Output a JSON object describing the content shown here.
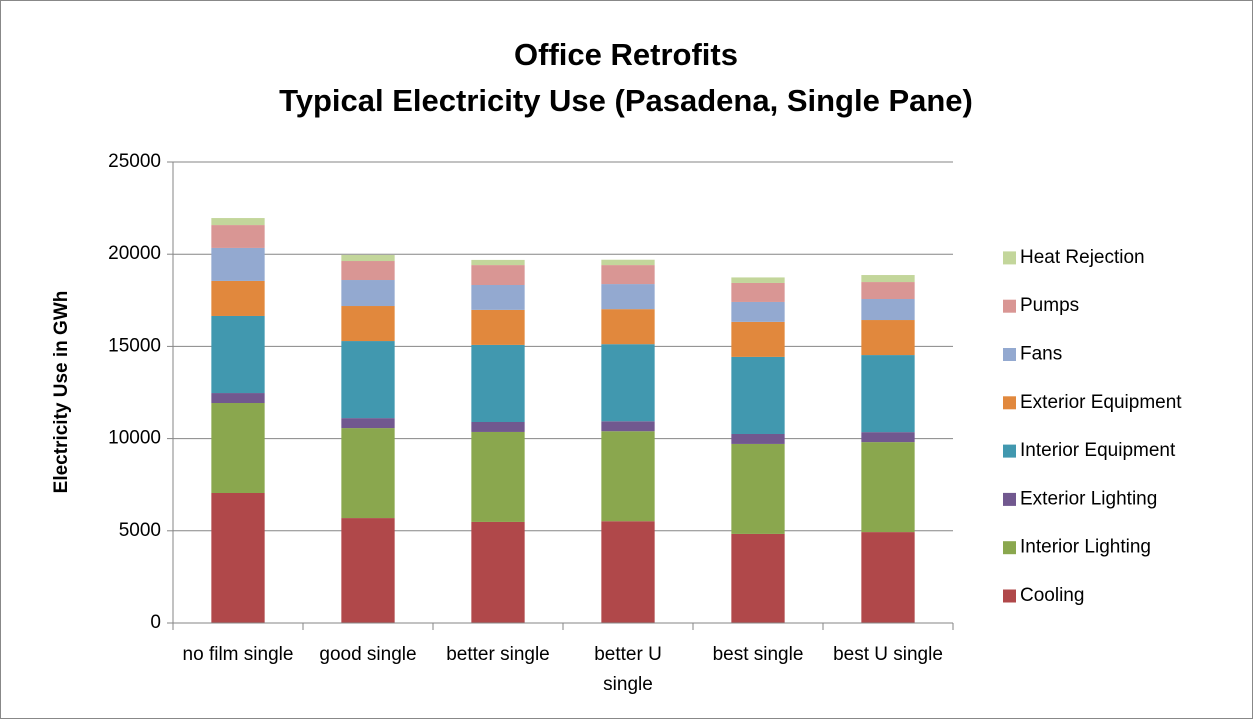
{
  "chart_data": {
    "type": "stacked_bar",
    "title": "Office Retrofits",
    "subtitle": "Typical Electricity Use (Pasadena, Single Pane)",
    "y_label": "Electricity Use in GWh",
    "categories": [
      "no film single",
      "good single",
      "better single",
      "better U single",
      "best single",
      "best U single"
    ],
    "series": [
      {
        "name": "Cooling",
        "color": "#b0484a",
        "values": [
          7050,
          5690,
          5480,
          5520,
          4830,
          4930
        ]
      },
      {
        "name": "Interior Lighting",
        "color": "#8aa74e",
        "values": [
          4880,
          4880,
          4880,
          4880,
          4880,
          4880
        ]
      },
      {
        "name": "Exterior Lighting",
        "color": "#71588f",
        "values": [
          540,
          540,
          540,
          540,
          540,
          540
        ]
      },
      {
        "name": "Interior Equipment",
        "color": "#4198af",
        "values": [
          4180,
          4180,
          4180,
          4180,
          4180,
          4180
        ]
      },
      {
        "name": "Exterior Equipment",
        "color": "#e1883d",
        "values": [
          1900,
          1900,
          1900,
          1900,
          1900,
          1900
        ]
      },
      {
        "name": "Fans",
        "color": "#93a9d0",
        "values": [
          1790,
          1410,
          1350,
          1360,
          1080,
          1140
        ]
      },
      {
        "name": "Pumps",
        "color": "#d99694",
        "values": [
          1240,
          1030,
          1080,
          1030,
          1030,
          920
        ]
      },
      {
        "name": "Heat Rejection",
        "color": "#c3d69b",
        "values": [
          380,
          330,
          280,
          290,
          300,
          380
        ]
      }
    ],
    "ylim": [
      0,
      25000
    ],
    "yticks": [
      0,
      5000,
      10000,
      15000,
      20000,
      25000
    ],
    "grid": true,
    "legend": "right"
  }
}
